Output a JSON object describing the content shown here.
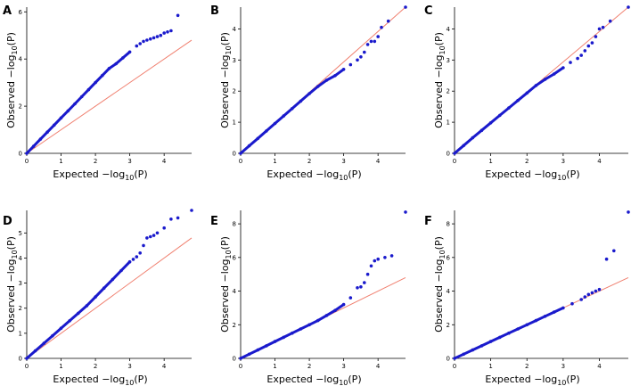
{
  "chart_data": [
    {
      "type": "scatter",
      "panel": "A",
      "xlabel": "Expected",
      "ylabel": "Observed",
      "axis_expr": "−log",
      "axis_sub": "10",
      "axis_arg": "(P)",
      "xlim": [
        0,
        4.8
      ],
      "ylim": [
        0,
        6.2
      ],
      "xticks": [
        "0",
        "1",
        "2",
        "3",
        "4"
      ],
      "yticks": [
        "0",
        "2",
        "4",
        "6"
      ],
      "reference_line": {
        "x": [
          0,
          4.8
        ],
        "y": [
          0,
          4.8
        ]
      },
      "points": {
        "x": [
          0,
          0.2,
          0.4,
          0.6,
          0.8,
          1.0,
          1.2,
          1.4,
          1.6,
          1.8,
          2.0,
          2.2,
          2.4,
          2.6,
          2.8,
          3.0,
          3.2,
          3.3,
          3.4,
          3.5,
          3.6,
          3.7,
          3.8,
          3.9,
          4.0,
          4.1,
          4.2,
          4.4
        ],
        "y": [
          0,
          0.3,
          0.6,
          0.9,
          1.2,
          1.5,
          1.8,
          2.1,
          2.4,
          2.7,
          3.0,
          3.3,
          3.6,
          3.8,
          4.05,
          4.3,
          4.55,
          4.65,
          4.75,
          4.8,
          4.85,
          4.9,
          4.95,
          5.0,
          5.1,
          5.15,
          5.2,
          5.85
        ]
      }
    },
    {
      "type": "scatter",
      "panel": "B",
      "xlabel": "Expected",
      "ylabel": "Observed",
      "axis_expr": "−log",
      "axis_sub": "10",
      "axis_arg": "(P)",
      "xlim": [
        0,
        4.8
      ],
      "ylim": [
        0,
        4.7
      ],
      "xticks": [
        "0",
        "1",
        "2",
        "3",
        "4"
      ],
      "yticks": [
        "0",
        "1",
        "2",
        "3",
        "4"
      ],
      "reference_line": {
        "x": [
          0,
          4.8
        ],
        "y": [
          0,
          4.8
        ]
      },
      "points": {
        "x": [
          0,
          0.25,
          0.5,
          0.75,
          1.0,
          1.25,
          1.5,
          1.75,
          2.0,
          2.25,
          2.5,
          2.75,
          3.0,
          3.2,
          3.4,
          3.5,
          3.6,
          3.7,
          3.8,
          3.9,
          4.0,
          4.1,
          4.3,
          4.8
        ],
        "y": [
          0,
          0.24,
          0.48,
          0.72,
          0.96,
          1.2,
          1.44,
          1.68,
          1.92,
          2.15,
          2.35,
          2.5,
          2.7,
          2.85,
          3.0,
          3.1,
          3.25,
          3.5,
          3.6,
          3.6,
          3.75,
          4.05,
          4.25,
          4.7
        ]
      }
    },
    {
      "type": "scatter",
      "panel": "C",
      "xlabel": "Expected",
      "ylabel": "Observed",
      "axis_expr": "−log",
      "axis_sub": "10",
      "axis_arg": "(P)",
      "xlim": [
        0,
        4.8
      ],
      "ylim": [
        0,
        4.7
      ],
      "xticks": [
        "0",
        "1",
        "2",
        "3",
        "4"
      ],
      "yticks": [
        "0",
        "1",
        "2",
        "3",
        "4"
      ],
      "reference_line": {
        "x": [
          0,
          4.8
        ],
        "y": [
          0,
          4.8
        ]
      },
      "points": {
        "x": [
          0,
          0.25,
          0.5,
          0.75,
          1.0,
          1.25,
          1.5,
          1.75,
          2.0,
          2.25,
          2.5,
          2.75,
          3.0,
          3.2,
          3.4,
          3.5,
          3.6,
          3.7,
          3.8,
          3.9,
          4.0,
          4.1,
          4.3,
          4.8
        ],
        "y": [
          0,
          0.25,
          0.5,
          0.74,
          0.98,
          1.22,
          1.46,
          1.7,
          1.94,
          2.18,
          2.38,
          2.55,
          2.75,
          2.92,
          3.05,
          3.15,
          3.3,
          3.45,
          3.55,
          3.75,
          4.0,
          4.05,
          4.25,
          4.7
        ]
      }
    },
    {
      "type": "scatter",
      "panel": "D",
      "xlabel": "Expected",
      "ylabel": "Observed",
      "axis_expr": "−log",
      "axis_sub": "10",
      "axis_arg": "(P)",
      "xlim": [
        0,
        4.8
      ],
      "ylim": [
        0,
        5.9
      ],
      "xticks": [
        "0",
        "1",
        "2",
        "3",
        "4"
      ],
      "yticks": [
        "0",
        "1",
        "2",
        "3",
        "4",
        "5"
      ],
      "reference_line": {
        "x": [
          0,
          4.8
        ],
        "y": [
          0,
          4.8
        ]
      },
      "points": {
        "x": [
          0,
          0.25,
          0.5,
          0.75,
          1.0,
          1.25,
          1.5,
          1.75,
          2.0,
          2.25,
          2.5,
          2.75,
          3.0,
          3.1,
          3.2,
          3.3,
          3.4,
          3.5,
          3.6,
          3.7,
          3.8,
          4.0,
          4.2,
          4.4,
          4.8
        ],
        "y": [
          0,
          0.3,
          0.6,
          0.9,
          1.2,
          1.5,
          1.8,
          2.1,
          2.45,
          2.8,
          3.15,
          3.5,
          3.85,
          3.95,
          4.05,
          4.2,
          4.5,
          4.8,
          4.85,
          4.9,
          5.0,
          5.2,
          5.55,
          5.6,
          5.9
        ]
      }
    },
    {
      "type": "scatter",
      "panel": "E",
      "xlabel": "Expected",
      "ylabel": "Observed",
      "axis_expr": "−log",
      "axis_sub": "10",
      "axis_arg": "(P)",
      "xlim": [
        0,
        4.8
      ],
      "ylim": [
        0,
        8.8
      ],
      "xticks": [
        "0",
        "1",
        "2",
        "3",
        "4"
      ],
      "yticks": [
        "0",
        "2",
        "4",
        "6",
        "8"
      ],
      "reference_line": {
        "x": [
          0,
          4.8
        ],
        "y": [
          0,
          4.8
        ]
      },
      "points": {
        "x": [
          0,
          0.25,
          0.5,
          0.75,
          1.0,
          1.25,
          1.5,
          1.75,
          2.0,
          2.25,
          2.5,
          2.75,
          3.0,
          3.2,
          3.4,
          3.5,
          3.6,
          3.7,
          3.8,
          3.9,
          4.0,
          4.2,
          4.4,
          4.8
        ],
        "y": [
          0,
          0.25,
          0.5,
          0.75,
          1.0,
          1.25,
          1.5,
          1.75,
          2.0,
          2.25,
          2.55,
          2.85,
          3.2,
          3.6,
          4.2,
          4.25,
          4.5,
          5.0,
          5.5,
          5.8,
          5.9,
          6.0,
          6.1,
          8.7
        ]
      }
    },
    {
      "type": "scatter",
      "panel": "F",
      "xlabel": "Expected",
      "ylabel": "Observed",
      "axis_expr": "−log",
      "axis_sub": "10",
      "axis_arg": "(P)",
      "xlim": [
        0,
        4.8
      ],
      "ylim": [
        0,
        8.8
      ],
      "xticks": [
        "0",
        "1",
        "2",
        "3",
        "4"
      ],
      "yticks": [
        "0",
        "2",
        "4",
        "6",
        "8"
      ],
      "reference_line": {
        "x": [
          0,
          4.8
        ],
        "y": [
          0,
          4.8
        ]
      },
      "points": {
        "x": [
          0,
          0.25,
          0.5,
          0.75,
          1.0,
          1.25,
          1.5,
          1.75,
          2.0,
          2.25,
          2.5,
          2.75,
          3.0,
          3.25,
          3.5,
          3.6,
          3.7,
          3.8,
          3.9,
          4.0,
          4.2,
          4.4,
          4.8
        ],
        "y": [
          0,
          0.25,
          0.5,
          0.75,
          1.0,
          1.25,
          1.5,
          1.75,
          2.0,
          2.25,
          2.5,
          2.75,
          3.0,
          3.25,
          3.5,
          3.65,
          3.8,
          3.9,
          4.0,
          4.1,
          5.9,
          6.4,
          8.7
        ]
      }
    }
  ]
}
